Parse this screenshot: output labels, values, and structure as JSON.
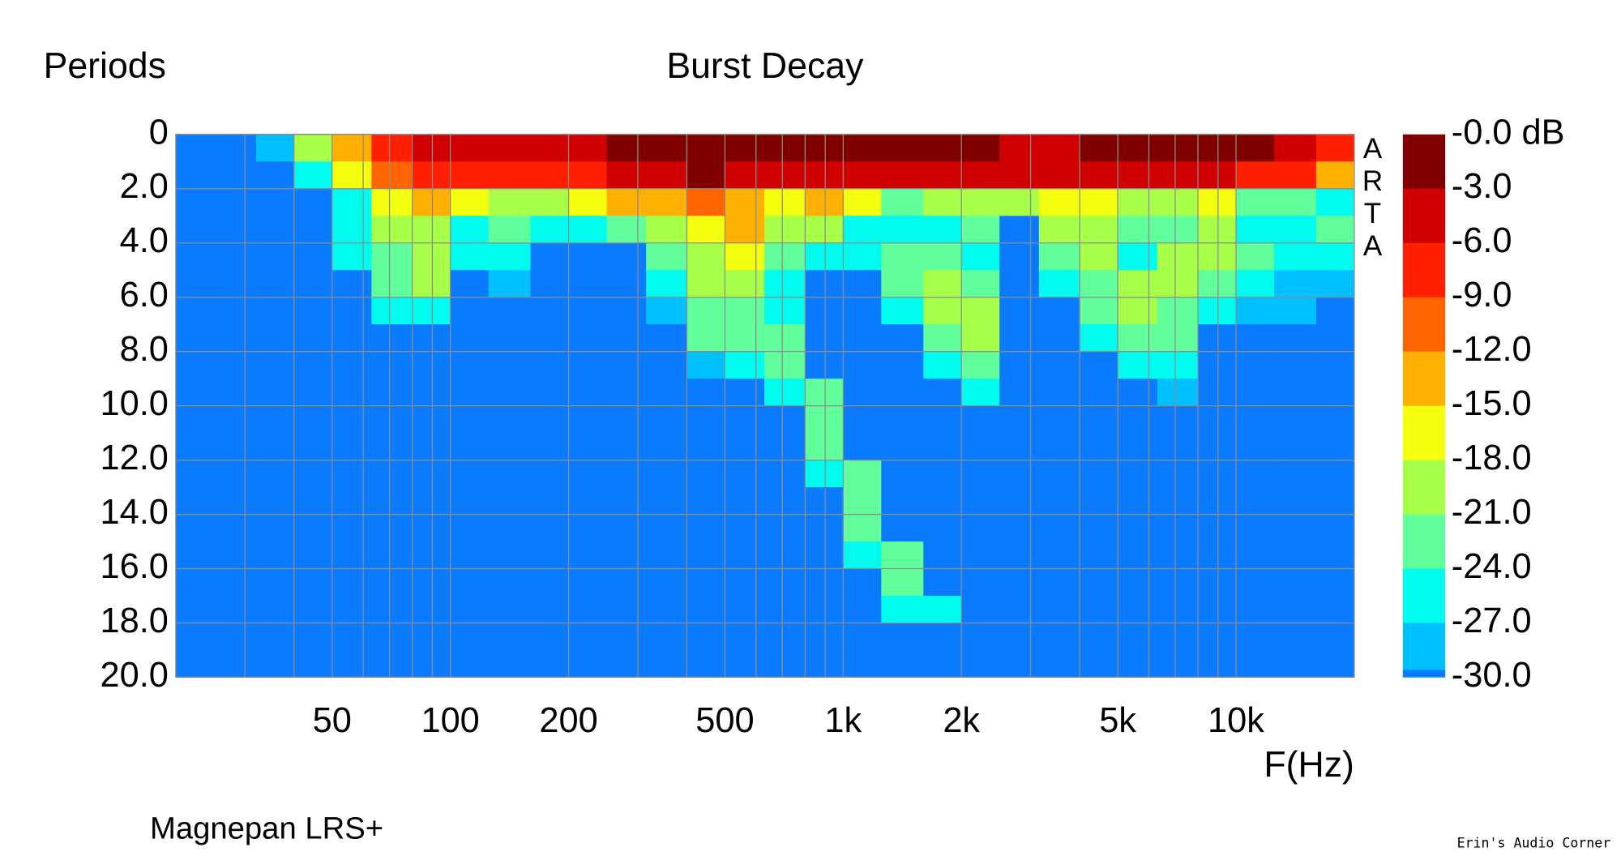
{
  "chart_data": {
    "type": "heatmap",
    "title": "Burst Decay",
    "subtitle": "Magnepan LRS+",
    "credit": "Erin's Audio Corner",
    "watermark": "ARTA",
    "x_label": "F(Hz)",
    "y_label": "Periods",
    "log_x": true,
    "grid": true,
    "xlim": [
      20,
      20000
    ],
    "ylim": [
      0,
      20
    ],
    "xticks": [
      {
        "value": 30,
        "label": null
      },
      {
        "value": 40,
        "label": null
      },
      50,
      {
        "value": 60,
        "label": null
      },
      {
        "value": 70,
        "label": null
      },
      {
        "value": 80,
        "label": null
      },
      {
        "value": 90,
        "label": null
      },
      100,
      200,
      {
        "value": 300,
        "label": null
      },
      {
        "value": 400,
        "label": null
      },
      500,
      {
        "value": 600,
        "label": null
      },
      {
        "value": 700,
        "label": null
      },
      {
        "value": 800,
        "label": null
      },
      {
        "value": 900,
        "label": null
      },
      {
        "value": 1000,
        "label": "1k"
      },
      {
        "value": 2000,
        "label": "2k"
      },
      {
        "value": 3000,
        "label": null
      },
      {
        "value": 4000,
        "label": null
      },
      {
        "value": 5000,
        "label": "5k"
      },
      {
        "value": 6000,
        "label": null
      },
      {
        "value": 7000,
        "label": null
      },
      {
        "value": 8000,
        "label": null
      },
      {
        "value": 9000,
        "label": null
      },
      {
        "value": 10000,
        "label": "10k"
      }
    ],
    "yticks": [
      0,
      {
        "value": 2,
        "label": "2.0"
      },
      {
        "value": 4,
        "label": "4.0"
      },
      {
        "value": 6,
        "label": "6.0"
      },
      {
        "value": 8,
        "label": "8.0"
      },
      {
        "value": 10,
        "label": "10.0"
      },
      {
        "value": 12,
        "label": "12.0"
      },
      {
        "value": 14,
        "label": "14.0"
      },
      {
        "value": 16,
        "label": "16.0"
      },
      {
        "value": 18,
        "label": "18.0"
      },
      {
        "value": 20,
        "label": "20.0"
      }
    ],
    "colorbar": {
      "ticks": [
        {
          "value": 0,
          "label": "-0.0 dB"
        },
        {
          "value": -3,
          "label": "-3.0"
        },
        {
          "value": -6,
          "label": "-6.0"
        },
        {
          "value": -9,
          "label": "-9.0"
        },
        {
          "value": -12,
          "label": "-12.0"
        },
        {
          "value": -15,
          "label": "-15.0"
        },
        {
          "value": -18,
          "label": "-18.0"
        },
        {
          "value": -21,
          "label": "-21.0"
        },
        {
          "value": -24,
          "label": "-24.0"
        },
        {
          "value": -27,
          "label": "-27.0"
        },
        {
          "value": -30,
          "label": "-30.0"
        }
      ],
      "colors": [
        "#800000",
        "#d00000",
        "#ff2000",
        "#ff6400",
        "#ffb000",
        "#f4ff10",
        "#a8ff48",
        "#60ff9c",
        "#00fcee",
        "#00c0ff",
        "#0a7bff"
      ]
    },
    "x": [
      20,
      25,
      32,
      40,
      50,
      63,
      80,
      100,
      125,
      160,
      200,
      250,
      315,
      400,
      500,
      630,
      800,
      1000,
      1250,
      1600,
      2000,
      2500,
      3150,
      4000,
      5000,
      6300,
      8000,
      10000,
      12500,
      16000
    ],
    "y": [
      0,
      1,
      2,
      3,
      4,
      5,
      6,
      7,
      8,
      9,
      10,
      11,
      12,
      13,
      14,
      15,
      16,
      17,
      18,
      19
    ],
    "values": [
      [
        -33,
        -33,
        -33,
        -33,
        -33,
        -33,
        -33,
        -33,
        -33,
        -33,
        -33,
        -33,
        -33,
        -33,
        -33,
        -33,
        -33,
        -33,
        -33,
        -33
      ],
      [
        -33,
        -33,
        -33,
        -33,
        -33,
        -33,
        -33,
        -33,
        -33,
        -33,
        -33,
        -33,
        -33,
        -33,
        -33,
        -33,
        -33,
        -33,
        -33,
        -33
      ],
      [
        -28.5,
        -33,
        -33,
        -33,
        -33,
        -33,
        -33,
        -33,
        -33,
        -33,
        -33,
        -33,
        -33,
        -33,
        -33,
        -33,
        -33,
        -33,
        -33,
        -33
      ],
      [
        -19.5,
        -25.5,
        -33,
        -33,
        -33,
        -33,
        -33,
        -33,
        -33,
        -33,
        -33,
        -33,
        -33,
        -33,
        -33,
        -33,
        -33,
        -33,
        -33,
        -33
      ],
      [
        -13.5,
        -16.5,
        -25.5,
        -25.5,
        -25.5,
        -33,
        -33,
        -33,
        -33,
        -33,
        -33,
        -33,
        -33,
        -33,
        -33,
        -33,
        -33,
        -33,
        -33,
        -33
      ],
      [
        -7.5,
        -10.5,
        -16.5,
        -19.5,
        -22.5,
        -22.5,
        -25.5,
        -33,
        -33,
        -33,
        -33,
        -33,
        -33,
        -33,
        -33,
        -33,
        -33,
        -33,
        -33,
        -33
      ],
      [
        -4.5,
        -7.5,
        -13.5,
        -19.5,
        -19.5,
        -19.5,
        -25.5,
        -33,
        -33,
        -33,
        -33,
        -33,
        -33,
        -33,
        -33,
        -33,
        -33,
        -33,
        -33,
        -33
      ],
      [
        -4.5,
        -7.5,
        -16.5,
        -25.5,
        -25.5,
        -33,
        -33,
        -33,
        -33,
        -33,
        -33,
        -33,
        -33,
        -33,
        -33,
        -33,
        -33,
        -33,
        -33,
        -33
      ],
      [
        -4.5,
        -7.5,
        -19.5,
        -22.5,
        -25.5,
        -28.5,
        -33,
        -33,
        -33,
        -33,
        -33,
        -33,
        -33,
        -33,
        -33,
        -33,
        -33,
        -33,
        -33,
        -33
      ],
      [
        -4.5,
        -7.5,
        -19.5,
        -25.5,
        -33,
        -33,
        -33,
        -33,
        -33,
        -33,
        -33,
        -33,
        -33,
        -33,
        -33,
        -33,
        -33,
        -33,
        -33,
        -33
      ],
      [
        -4.5,
        -7.5,
        -16.5,
        -25.5,
        -33,
        -33,
        -33,
        -33,
        -33,
        -33,
        -33,
        -33,
        -33,
        -33,
        -33,
        -33,
        -33,
        -33,
        -33,
        -33
      ],
      [
        -1.5,
        -4.5,
        -13.5,
        -22.5,
        -33,
        -33,
        -33,
        -33,
        -33,
        -33,
        -33,
        -33,
        -33,
        -33,
        -33,
        -33,
        -33,
        -33,
        -33,
        -33
      ],
      [
        -1.5,
        -4.5,
        -13.5,
        -19.5,
        -22.5,
        -25.5,
        -28.5,
        -33,
        -33,
        -33,
        -33,
        -33,
        -33,
        -33,
        -33,
        -33,
        -33,
        -33,
        -33,
        -33
      ],
      [
        -1.5,
        -1.5,
        -10.5,
        -16.5,
        -19.5,
        -19.5,
        -22.5,
        -22.5,
        -28.5,
        -33,
        -33,
        -33,
        -33,
        -33,
        -33,
        -33,
        -33,
        -33,
        -33,
        -33
      ],
      [
        -1.5,
        -4.5,
        -13.5,
        -13.5,
        -16.5,
        -19.5,
        -22.5,
        -22.5,
        -25.5,
        -33,
        -33,
        -33,
        -33,
        -33,
        -33,
        -33,
        -33,
        -33,
        -33,
        -33
      ],
      [
        -1.5,
        -4.5,
        -16.5,
        -19.5,
        -22.5,
        -25.5,
        -25.5,
        -22.5,
        -22.5,
        -25.5,
        -33,
        -33,
        -33,
        -33,
        -33,
        -33,
        -33,
        -33,
        -33,
        -33
      ],
      [
        -1.5,
        -4.5,
        -13.5,
        -19.5,
        -25.5,
        -33,
        -33,
        -33,
        -33,
        -22.5,
        -22.5,
        -22.5,
        -25.5,
        -33,
        -33,
        -33,
        -33,
        -33,
        -33,
        -33
      ],
      [
        -1.5,
        -4.5,
        -16.5,
        -25.5,
        -25.5,
        -33,
        -33,
        -33,
        -33,
        -33,
        -33,
        -33,
        -22.5,
        -22.5,
        -22.5,
        -25.5,
        -33,
        -33,
        -33,
        -33
      ],
      [
        -1.5,
        -4.5,
        -22.5,
        -25.5,
        -22.5,
        -22.5,
        -25.5,
        -33,
        -33,
        -33,
        -33,
        -33,
        -33,
        -33,
        -33,
        -22.5,
        -22.5,
        -25.5,
        -33,
        -33
      ],
      [
        -1.5,
        -4.5,
        -19.5,
        -25.5,
        -22.5,
        -19.5,
        -19.5,
        -22.5,
        -25.5,
        -33,
        -33,
        -33,
        -33,
        -33,
        -33,
        -33,
        -33,
        -25.5,
        -33,
        -33
      ],
      [
        -1.5,
        -4.5,
        -19.5,
        -22.5,
        -25.5,
        -22.5,
        -19.5,
        -19.5,
        -22.5,
        -25.5,
        -33,
        -33,
        -33,
        -33,
        -33,
        -33,
        -33,
        -33,
        -33,
        -33
      ],
      [
        -4.5,
        -4.5,
        -19.5,
        -33,
        -33,
        -33,
        -33,
        -33,
        -33,
        -33,
        -33,
        -33,
        -33,
        -33,
        -33,
        -33,
        -33,
        -33,
        -33,
        -33
      ],
      [
        -4.5,
        -4.5,
        -16.5,
        -19.5,
        -22.5,
        -25.5,
        -33,
        -33,
        -33,
        -33,
        -33,
        -33,
        -33,
        -33,
        -33,
        -33,
        -33,
        -33,
        -33,
        -33
      ],
      [
        -1.5,
        -4.5,
        -16.5,
        -19.5,
        -19.5,
        -22.5,
        -22.5,
        -25.5,
        -33,
        -33,
        -33,
        -33,
        -33,
        -33,
        -33,
        -33,
        -33,
        -33,
        -33,
        -33
      ],
      [
        -1.5,
        -4.5,
        -19.5,
        -22.5,
        -25.5,
        -19.5,
        -19.5,
        -22.5,
        -25.5,
        -33,
        -33,
        -33,
        -33,
        -33,
        -33,
        -33,
        -33,
        -33,
        -33,
        -33
      ],
      [
        -1.5,
        -4.5,
        -19.5,
        -22.5,
        -19.5,
        -19.5,
        -22.5,
        -22.5,
        -25.5,
        -28.5,
        -33,
        -33,
        -33,
        -33,
        -33,
        -33,
        -33,
        -33,
        -33,
        -33
      ],
      [
        -1.5,
        -4.5,
        -16.5,
        -19.5,
        -19.5,
        -22.5,
        -25.5,
        -33,
        -33,
        -33,
        -33,
        -33,
        -33,
        -33,
        -33,
        -33,
        -33,
        -33,
        -33,
        -33
      ],
      [
        -1.5,
        -7.5,
        -22.5,
        -25.5,
        -22.5,
        -25.5,
        -28.5,
        -33,
        -33,
        -33,
        -33,
        -33,
        -33,
        -33,
        -33,
        -33,
        -33,
        -33,
        -33,
        -33
      ],
      [
        -4.5,
        -7.5,
        -22.5,
        -25.5,
        -25.5,
        -28.5,
        -28.5,
        -33,
        -33,
        -33,
        -33,
        -33,
        -33,
        -33,
        -33,
        -33,
        -33,
        -33,
        -33,
        -33
      ],
      [
        -7.5,
        -13.5,
        -25.5,
        -22.5,
        -25.5,
        -28.5,
        -33,
        -33,
        -33,
        -33,
        -33,
        -33,
        -33,
        -33,
        -33,
        -33,
        -33,
        -33,
        -33,
        -33
      ]
    ]
  }
}
